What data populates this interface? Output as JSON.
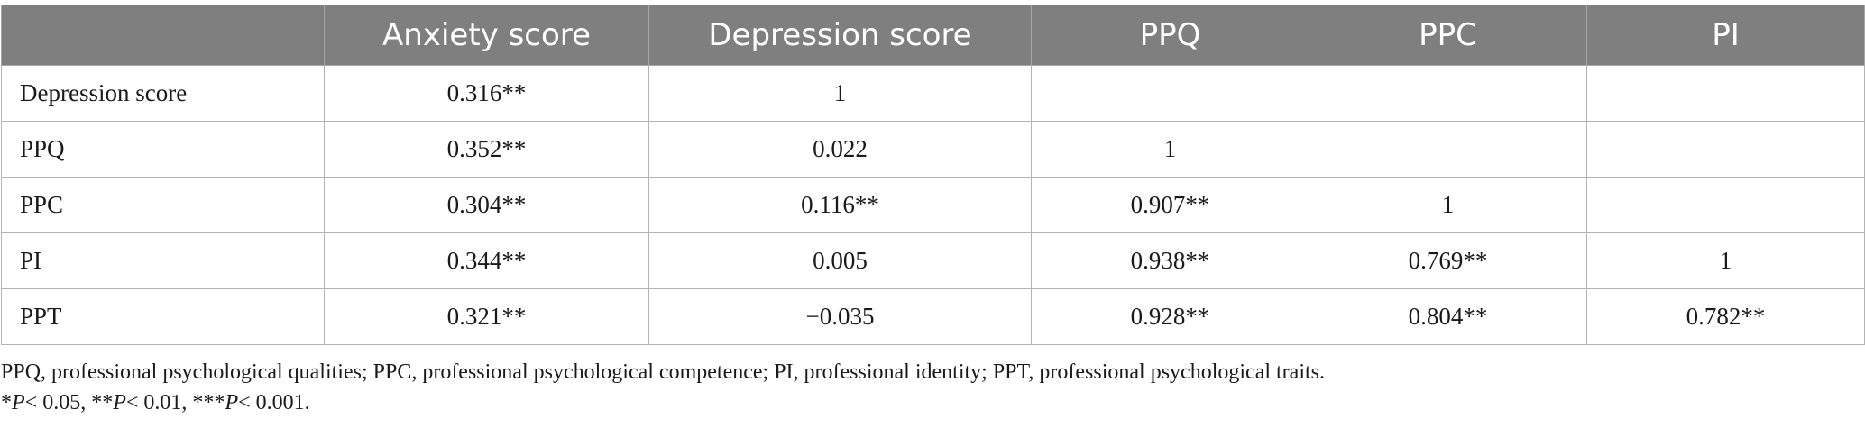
{
  "table": {
    "headers": [
      "",
      "Anxiety score",
      "Depression score",
      "PPQ",
      "PPC",
      "PI"
    ],
    "rows": [
      {
        "label": "Depression score",
        "cells": [
          "0.316**",
          "1",
          "",
          "",
          ""
        ]
      },
      {
        "label": "PPQ",
        "cells": [
          "0.352**",
          "0.022",
          "1",
          "",
          ""
        ]
      },
      {
        "label": "PPC",
        "cells": [
          "0.304**",
          "0.116**",
          "0.907**",
          "1",
          ""
        ]
      },
      {
        "label": "PI",
        "cells": [
          "0.344**",
          "0.005",
          "0.938**",
          "0.769**",
          "1"
        ]
      },
      {
        "label": "PPT",
        "cells": [
          "0.321**",
          "−0.035",
          "0.928**",
          "0.804**",
          "0.782**"
        ]
      }
    ]
  },
  "notes": {
    "abbreviations": "PPQ, professional psychological qualities; PPC, professional psychological competence; PI, professional identity; PPT, professional psychological traits.",
    "significance": {
      "p1_prefix": "*",
      "p1_value": "< 0.05, **",
      "p2_value": "< 0.01, ***",
      "p3_value": "< 0.001.",
      "p_symbol": "P"
    }
  },
  "colors": {
    "header_bg": "#7f7f7f",
    "header_text": "#ffffff",
    "grid": "#b3b3b3",
    "body_text": "#1a1a1a"
  }
}
